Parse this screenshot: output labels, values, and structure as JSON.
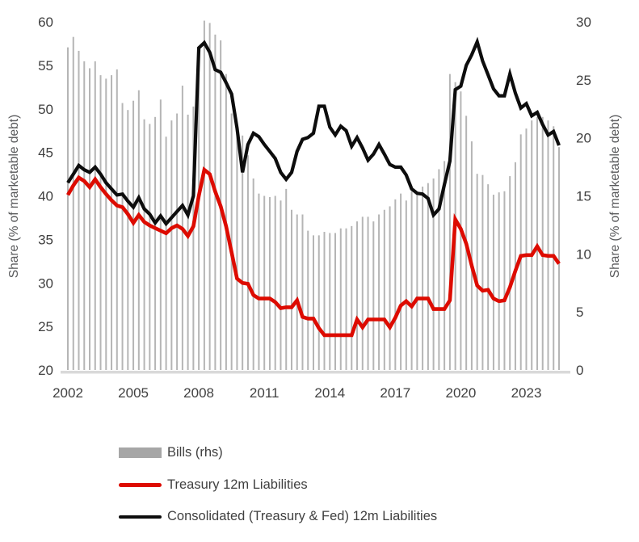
{
  "chart_data": {
    "type": "bar",
    "subtype": "combo-bar-and-lines",
    "title": "",
    "x_start_year": 2002,
    "x_step_years": 0.25,
    "x_ticks": [
      2002,
      2005,
      2008,
      2011,
      2014,
      2017,
      2020,
      2023
    ],
    "left_axis": {
      "label": "Share (% of marketable debt)",
      "min": 20,
      "max": 60,
      "ticks": [
        20,
        25,
        30,
        35,
        40,
        45,
        50,
        55,
        60
      ]
    },
    "right_axis": {
      "label": "Share (% of marketable debt)",
      "min": 0,
      "max": 30,
      "ticks": [
        0,
        5,
        10,
        15,
        20,
        25,
        30
      ]
    },
    "grid": false,
    "legend_position": "bottom-left",
    "colors": {
      "bars": "#b5b5b5",
      "bars_legend": "#a6a6a6",
      "treasury": "#dd0b00",
      "consolidated": "#0d0d0d",
      "axis_line": "#d9d9d9",
      "text": "#404040"
    },
    "series": [
      {
        "name": "Bills (rhs)",
        "type": "bar",
        "axis": "right",
        "values": [
          27.8,
          28.7,
          27.5,
          26.6,
          26.0,
          26.6,
          25.4,
          25.1,
          25.4,
          25.9,
          23.0,
          22.4,
          23.2,
          24.1,
          21.6,
          21.2,
          21.8,
          23.3,
          20.1,
          21.5,
          22.1,
          24.5,
          22.0,
          22.7,
          27.3,
          30.1,
          29.9,
          28.9,
          28.4,
          25.5,
          22.1,
          21.0,
          20.2,
          18.5,
          16.5,
          15.2,
          15.0,
          14.9,
          15.0,
          14.6,
          15.6,
          13.8,
          13.4,
          13.4,
          12.0,
          11.6,
          11.6,
          11.9,
          11.8,
          11.8,
          12.2,
          12.2,
          12.4,
          12.8,
          13.2,
          13.2,
          12.8,
          13.4,
          13.8,
          14.1,
          14.7,
          15.2,
          14.6,
          15.4,
          15.2,
          15.8,
          16.1,
          16.5,
          17.3,
          18.0,
          25.5,
          24.8,
          24.0,
          21.9,
          19.7,
          16.9,
          16.8,
          16.0,
          15.1,
          15.3,
          15.4,
          16.7,
          17.9,
          20.3,
          20.8,
          21.5,
          21.8,
          21.8,
          21.5,
          21.0,
          19.2
        ]
      },
      {
        "name": "Treasury 12m Liabilities",
        "type": "line",
        "axis": "left",
        "values": [
          40.1,
          41.2,
          42.1,
          41.7,
          41.0,
          41.9,
          41.0,
          40.2,
          39.5,
          38.9,
          38.7,
          37.9,
          36.9,
          37.8,
          37.0,
          36.6,
          36.3,
          36.0,
          35.7,
          36.3,
          36.6,
          36.2,
          35.4,
          36.5,
          40.0,
          43.0,
          42.5,
          40.5,
          38.8,
          36.5,
          33.5,
          30.5,
          30.0,
          29.9,
          28.6,
          28.2,
          28.2,
          28.2,
          27.8,
          27.1,
          27.2,
          27.2,
          28.0,
          26.1,
          25.9,
          25.9,
          24.8,
          24.0,
          24.0,
          24.0,
          24.0,
          24.0,
          24.0,
          25.8,
          24.9,
          25.8,
          25.8,
          25.8,
          25.8,
          24.9,
          26.0,
          27.4,
          27.9,
          27.3,
          28.2,
          28.2,
          28.2,
          27.0,
          27.0,
          27.0,
          28.0,
          37.3,
          36.2,
          34.5,
          32.0,
          29.7,
          29.1,
          29.2,
          28.2,
          27.9,
          28.0,
          29.5,
          31.4,
          33.1,
          33.2,
          33.2,
          34.2,
          33.2,
          33.1,
          33.1,
          32.2
        ]
      },
      {
        "name": "Consolidated (Treasury & Fed) 12m Liabilities",
        "type": "line",
        "axis": "left",
        "values": [
          41.5,
          42.5,
          43.5,
          43.0,
          42.7,
          43.3,
          42.5,
          41.5,
          40.8,
          40.1,
          40.2,
          39.4,
          38.7,
          39.8,
          38.5,
          37.9,
          36.9,
          37.7,
          36.8,
          37.5,
          38.2,
          38.9,
          37.8,
          40.0,
          57.0,
          57.6,
          56.5,
          54.5,
          54.2,
          53.0,
          51.7,
          47.8,
          42.7,
          45.9,
          47.2,
          46.8,
          45.9,
          45.1,
          44.3,
          42.7,
          41.9,
          42.7,
          45.1,
          46.5,
          46.7,
          47.2,
          50.3,
          50.3,
          47.9,
          47.0,
          48.0,
          47.5,
          45.7,
          46.7,
          45.5,
          44.1,
          44.8,
          45.9,
          44.8,
          43.6,
          43.3,
          43.3,
          42.4,
          40.8,
          40.3,
          40.2,
          39.7,
          37.8,
          38.5,
          41.3,
          44.0,
          52.2,
          52.6,
          55.0,
          56.2,
          57.7,
          55.5,
          53.9,
          52.3,
          51.5,
          51.5,
          54.0,
          51.8,
          50.1,
          50.6,
          49.2,
          49.6,
          48.2,
          47.0,
          47.4,
          45.8
        ]
      }
    ]
  }
}
